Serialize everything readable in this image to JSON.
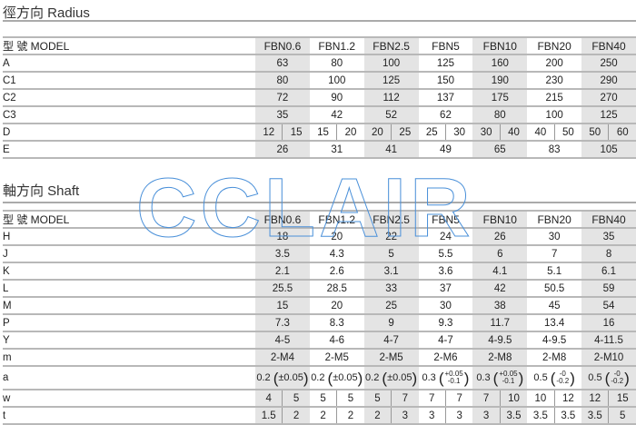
{
  "radius": {
    "title": "徑方向  Radius",
    "model_label": "型  號 MODEL",
    "models": [
      "FBN0.6",
      "FBN1.2",
      "FBN2.5",
      "FBN5",
      "FBN10",
      "FBN20",
      "FBN40"
    ],
    "rows": [
      {
        "label": "A",
        "values": [
          "63",
          "80",
          "100",
          "125",
          "160",
          "200",
          "250"
        ]
      },
      {
        "label": "C1",
        "values": [
          "80",
          "100",
          "125",
          "150",
          "190",
          "230",
          "290"
        ]
      },
      {
        "label": "C2",
        "values": [
          "72",
          "90",
          "112",
          "137",
          "175",
          "215",
          "270"
        ]
      },
      {
        "label": "C3",
        "values": [
          "35",
          "42",
          "52",
          "62",
          "80",
          "100",
          "125"
        ]
      },
      {
        "label": "D",
        "split": true,
        "values": [
          [
            "12",
            "15"
          ],
          [
            "15",
            "20"
          ],
          [
            "20",
            "25"
          ],
          [
            "25",
            "30"
          ],
          [
            "30",
            "40"
          ],
          [
            "40",
            "50"
          ],
          [
            "50",
            "60"
          ]
        ]
      },
      {
        "label": "E",
        "values": [
          "26",
          "31",
          "41",
          "49",
          "65",
          "83",
          "105"
        ]
      }
    ]
  },
  "shaft": {
    "title": "軸方向  Shaft",
    "model_label": "型  號 MODEL",
    "models": [
      "FBN0.6",
      "FBN1.2",
      "FBN2.5",
      "FBN5",
      "FBN10",
      "FBN20",
      "FBN40"
    ],
    "rows": [
      {
        "label": "H",
        "values": [
          "18",
          "20",
          "22",
          "24",
          "26",
          "30",
          "35"
        ]
      },
      {
        "label": "J",
        "values": [
          "3.5",
          "4.3",
          "5",
          "5.5",
          "6",
          "7",
          "8"
        ]
      },
      {
        "label": "K",
        "values": [
          "2.1",
          "2.6",
          "3.1",
          "3.6",
          "4.1",
          "5.1",
          "6.1"
        ]
      },
      {
        "label": "L",
        "values": [
          "25.5",
          "28.5",
          "33",
          "37",
          "42",
          "50.5",
          "59"
        ]
      },
      {
        "label": "M",
        "values": [
          "15",
          "20",
          "25",
          "30",
          "38",
          "45",
          "54"
        ]
      },
      {
        "label": "P",
        "values": [
          "7.3",
          "8.3",
          "9",
          "9.3",
          "11.7",
          "13.4",
          "16"
        ]
      },
      {
        "label": "Y",
        "values": [
          "4-5",
          "4-6",
          "4-7",
          "4-7",
          "4-9.5",
          "4-9.5",
          "4-11.5"
        ]
      },
      {
        "label": "m",
        "values": [
          "2-M4",
          "2-M5",
          "2-M5",
          "2-M6",
          "2-M8",
          "2-M8",
          "2-M10"
        ]
      },
      {
        "label": "a",
        "tolerance": true,
        "values": [
          {
            "main": "0.2",
            "single": "±0.05"
          },
          {
            "main": "0.2",
            "single": "±0.05"
          },
          {
            "main": "0.2",
            "single": "±0.05"
          },
          {
            "main": "0.3",
            "upper": "+0.05",
            "lower": "-0.1"
          },
          {
            "main": "0.3",
            "upper": "+0.05",
            "lower": "-0.1"
          },
          {
            "main": "0.5",
            "upper": "-0",
            "lower": "-0.2"
          },
          {
            "main": "0.5",
            "upper": "-0",
            "lower": "-0.2"
          }
        ]
      },
      {
        "label": "w",
        "split": true,
        "values": [
          [
            "4",
            "5"
          ],
          [
            "5",
            "5"
          ],
          [
            "5",
            "7"
          ],
          [
            "7",
            "7"
          ],
          [
            "7",
            "10"
          ],
          [
            "10",
            "12"
          ],
          [
            "12",
            "15"
          ]
        ]
      },
      {
        "label": "t",
        "split": true,
        "values": [
          [
            "1.5",
            "2"
          ],
          [
            "2",
            "2"
          ],
          [
            "2",
            "3"
          ],
          [
            "3",
            "3"
          ],
          [
            "3",
            "3.5"
          ],
          [
            "3.5",
            "3.5"
          ],
          [
            "3.5",
            "5"
          ]
        ]
      }
    ]
  },
  "watermark": "CCLAIR",
  "colors": {
    "shaded_column": "#e4e4e4",
    "watermark_stroke": "#4a90d9"
  }
}
